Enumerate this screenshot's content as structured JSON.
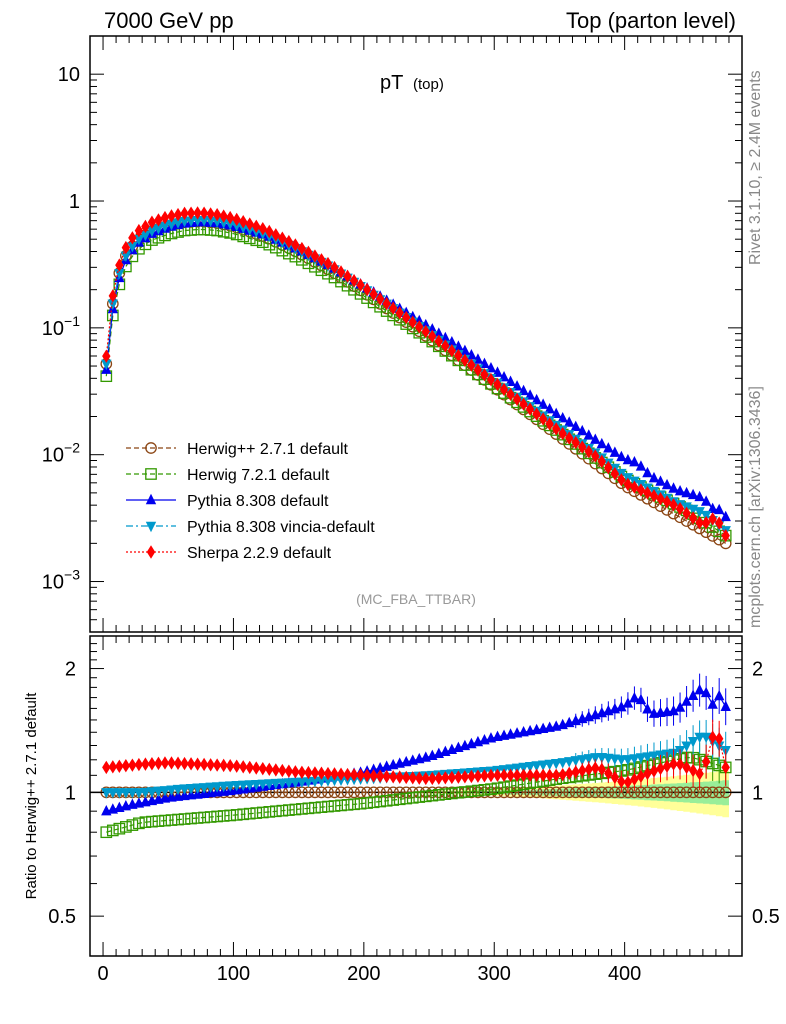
{
  "header": {
    "left": "7000 GeV pp",
    "right": "Top (parton level)"
  },
  "side_labels": {
    "version": "Rivet 3.1.10, ≥ 2.4M events",
    "source": "mcplots.cern.ch [arXiv:1306.3436]"
  },
  "main_plot": {
    "title": "pT",
    "title_sub": "(top)",
    "analysis_tag": "(MC_FBA_TTBAR)",
    "y_ticks": [
      {
        "value": 10,
        "mantissa": "10",
        "exp": ""
      },
      {
        "value": 1,
        "mantissa": "1",
        "exp": ""
      },
      {
        "value": 0.1,
        "mantissa": "10",
        "exp": "−1"
      },
      {
        "value": 0.01,
        "mantissa": "10",
        "exp": "−2"
      },
      {
        "value": 0.001,
        "mantissa": "10",
        "exp": "−3"
      }
    ]
  },
  "ratio_plot": {
    "ylabel": "Ratio to Herwig++ 2.7.1 default",
    "y_ticks": [
      "2",
      "1",
      "0.5"
    ]
  },
  "x_ticks": [
    "0",
    "100",
    "200",
    "300",
    "400"
  ],
  "chart_data": {
    "type": "scatter",
    "x_range": [
      -10,
      490
    ],
    "y_scale": "log",
    "y_range": [
      0.0004,
      20
    ],
    "ratio_scale": "log",
    "ratio_range": [
      0.4,
      2.4
    ],
    "bin_width": 5,
    "x_first": 2.5,
    "n_bins": 96,
    "reference_anchors": [
      [
        2.5,
        0.052
      ],
      [
        7.5,
        0.155
      ],
      [
        12.5,
        0.27
      ],
      [
        17.5,
        0.37
      ],
      [
        22.5,
        0.44
      ],
      [
        27.5,
        0.5
      ],
      [
        37.5,
        0.58
      ],
      [
        50,
        0.64
      ],
      [
        62.5,
        0.68
      ],
      [
        75,
        0.69
      ],
      [
        87.5,
        0.67
      ],
      [
        100,
        0.63
      ],
      [
        125,
        0.52
      ],
      [
        150,
        0.39
      ],
      [
        175,
        0.28
      ],
      [
        200,
        0.19
      ],
      [
        250,
        0.083
      ],
      [
        300,
        0.034
      ],
      [
        350,
        0.0139
      ],
      [
        400,
        0.0057
      ],
      [
        450,
        0.0029
      ],
      [
        477.5,
        0.002
      ]
    ],
    "series": [
      {
        "name": "Herwig++ 2.7.1 default",
        "color": "#8b4513",
        "marker": "open-circle",
        "line": "dashed",
        "ratio_anchors": [
          [
            0,
            1.0
          ],
          [
            480,
            1.0
          ]
        ]
      },
      {
        "name": "Herwig 7.2.1 default",
        "color": "#339900",
        "marker": "open-square",
        "line": "dashed",
        "ratio_anchors": [
          [
            2.5,
            0.8
          ],
          [
            15,
            0.82
          ],
          [
            30,
            0.845
          ],
          [
            60,
            0.86
          ],
          [
            100,
            0.88
          ],
          [
            150,
            0.91
          ],
          [
            200,
            0.94
          ],
          [
            250,
            0.98
          ],
          [
            300,
            1.02
          ],
          [
            350,
            1.08
          ],
          [
            400,
            1.13
          ],
          [
            450,
            1.22
          ],
          [
            477.5,
            1.15
          ]
        ]
      },
      {
        "name": "Pythia 8.308 default",
        "color": "#0000ee",
        "marker": "triangle-up",
        "line": "solid",
        "ratio_anchors": [
          [
            2.5,
            0.9
          ],
          [
            20,
            0.93
          ],
          [
            50,
            0.97
          ],
          [
            100,
            1.01
          ],
          [
            150,
            1.06
          ],
          [
            200,
            1.12
          ],
          [
            250,
            1.22
          ],
          [
            300,
            1.36
          ],
          [
            350,
            1.45
          ],
          [
            380,
            1.55
          ],
          [
            400,
            1.62
          ],
          [
            410,
            1.72
          ],
          [
            420,
            1.55
          ],
          [
            440,
            1.58
          ],
          [
            460,
            1.8
          ],
          [
            470,
            1.58
          ],
          [
            475,
            1.85
          ],
          [
            480,
            1.38
          ]
        ]
      },
      {
        "name": "Pythia 8.308 vincia-default",
        "color": "#0099cc",
        "marker": "triangle-down",
        "line": "dashdot",
        "ratio_anchors": [
          [
            2.5,
            1.0
          ],
          [
            30,
            1.0
          ],
          [
            60,
            1.02
          ],
          [
            100,
            1.04
          ],
          [
            150,
            1.06
          ],
          [
            200,
            1.08
          ],
          [
            250,
            1.1
          ],
          [
            300,
            1.13
          ],
          [
            350,
            1.18
          ],
          [
            380,
            1.22
          ],
          [
            400,
            1.2
          ],
          [
            440,
            1.25
          ],
          [
            460,
            1.38
          ],
          [
            480,
            1.25
          ]
        ]
      },
      {
        "name": "Sherpa 2.2.9 default",
        "color": "#ff0000",
        "marker": "diamond",
        "line": "dotted",
        "ratio_anchors": [
          [
            2.5,
            1.15
          ],
          [
            30,
            1.17
          ],
          [
            50,
            1.18
          ],
          [
            100,
            1.16
          ],
          [
            150,
            1.12
          ],
          [
            200,
            1.1
          ],
          [
            250,
            1.08
          ],
          [
            300,
            1.1
          ],
          [
            350,
            1.1
          ],
          [
            380,
            1.15
          ],
          [
            400,
            1.05
          ],
          [
            420,
            1.12
          ],
          [
            440,
            1.18
          ],
          [
            460,
            1.1
          ],
          [
            470,
            1.45
          ],
          [
            480,
            1.05
          ]
        ]
      }
    ],
    "ratio_bands": {
      "yellow_color": "#ffff99",
      "green_color": "#99ee99"
    }
  }
}
